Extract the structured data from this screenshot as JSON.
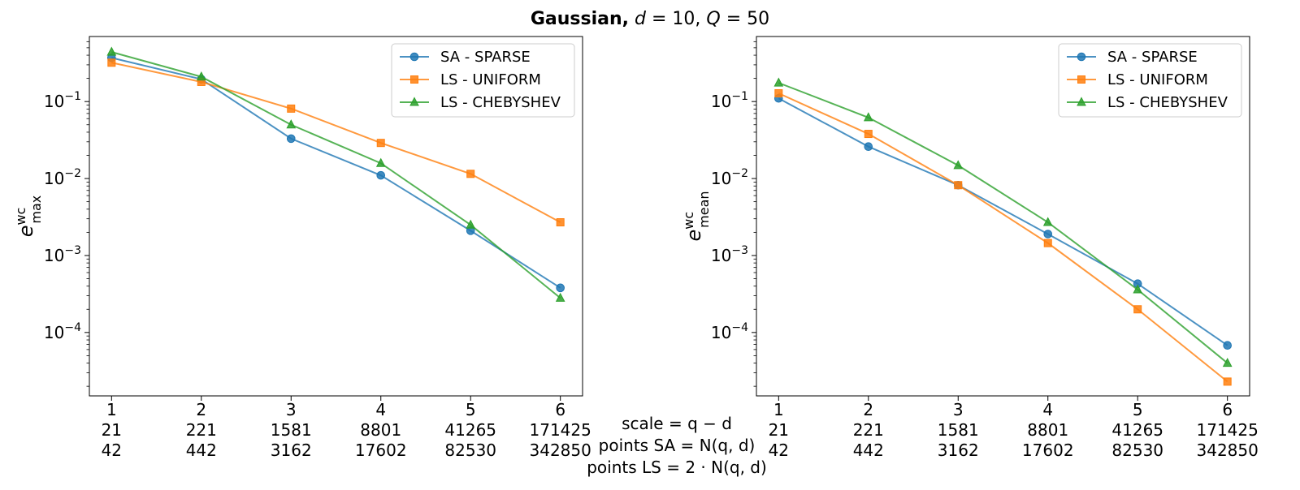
{
  "figure": {
    "title_prefix": "Gaussian,",
    "title_math": "d = 10, Q = 50",
    "title_d": "d",
    "title_d_val": " = 10, ",
    "title_q": "Q",
    "title_q_val": " = 50"
  },
  "axis_rows_caption": [
    "scale = q − d",
    "points SA = N(q, d)",
    "points LS = 2 · N(q, d)"
  ],
  "colors": {
    "sa_sparse": "#1f77b4",
    "ls_uniform": "#ff7f0e",
    "ls_chebyshev": "#2ca02c"
  },
  "chart_data": [
    {
      "type": "line",
      "yscale": "log",
      "ylabel_base": "e",
      "ylabel_sup": "wc",
      "ylabel_sub": "max",
      "x": [
        1,
        2,
        3,
        4,
        5,
        6
      ],
      "x_tick_rows": [
        [
          "1",
          "2",
          "3",
          "4",
          "5",
          "6"
        ],
        [
          "21",
          "221",
          "1581",
          "8801",
          "41265",
          "171425"
        ],
        [
          "42",
          "442",
          "3162",
          "17602",
          "82530",
          "342850"
        ]
      ],
      "ylim": [
        1.5e-05,
        0.7
      ],
      "y_ticks": [
        0.1,
        0.01,
        0.001,
        0.0001
      ],
      "y_tick_exponents": [
        "−1",
        "−2",
        "−3",
        "−4"
      ],
      "legend_position": "upper-right",
      "series": [
        {
          "name": "SA - SPARSE",
          "marker": "circle",
          "values": [
            0.37,
            0.195,
            0.033,
            0.011,
            0.0021,
            0.00038
          ]
        },
        {
          "name": "LS - UNIFORM",
          "marker": "square",
          "values": [
            0.32,
            0.18,
            0.081,
            0.029,
            0.0115,
            0.0027
          ]
        },
        {
          "name": "LS - CHEBYSHEV",
          "marker": "triangle",
          "values": [
            0.44,
            0.21,
            0.05,
            0.0158,
            0.0025,
            0.00028
          ]
        }
      ]
    },
    {
      "type": "line",
      "yscale": "log",
      "ylabel_base": "e",
      "ylabel_sup": "wc",
      "ylabel_sub": "mean",
      "x": [
        1,
        2,
        3,
        4,
        5,
        6
      ],
      "x_tick_rows": [
        [
          "1",
          "2",
          "3",
          "4",
          "5",
          "6"
        ],
        [
          "21",
          "221",
          "1581",
          "8801",
          "41265",
          "171425"
        ],
        [
          "42",
          "442",
          "3162",
          "17602",
          "82530",
          "342850"
        ]
      ],
      "ylim": [
        1.5e-05,
        0.7
      ],
      "y_ticks": [
        0.1,
        0.01,
        0.001,
        0.0001
      ],
      "y_tick_exponents": [
        "−1",
        "−2",
        "−3",
        "−4"
      ],
      "legend_position": "upper-right",
      "series": [
        {
          "name": "SA - SPARSE",
          "marker": "circle",
          "values": [
            0.11,
            0.026,
            0.0082,
            0.0019,
            0.00043,
            6.8e-05
          ]
        },
        {
          "name": "LS - UNIFORM",
          "marker": "square",
          "values": [
            0.128,
            0.038,
            0.0082,
            0.00145,
            0.0002,
            2.3e-05
          ]
        },
        {
          "name": "LS - CHEBYSHEV",
          "marker": "triangle",
          "values": [
            0.175,
            0.062,
            0.0148,
            0.0027,
            0.00036,
            4e-05
          ]
        }
      ]
    }
  ]
}
